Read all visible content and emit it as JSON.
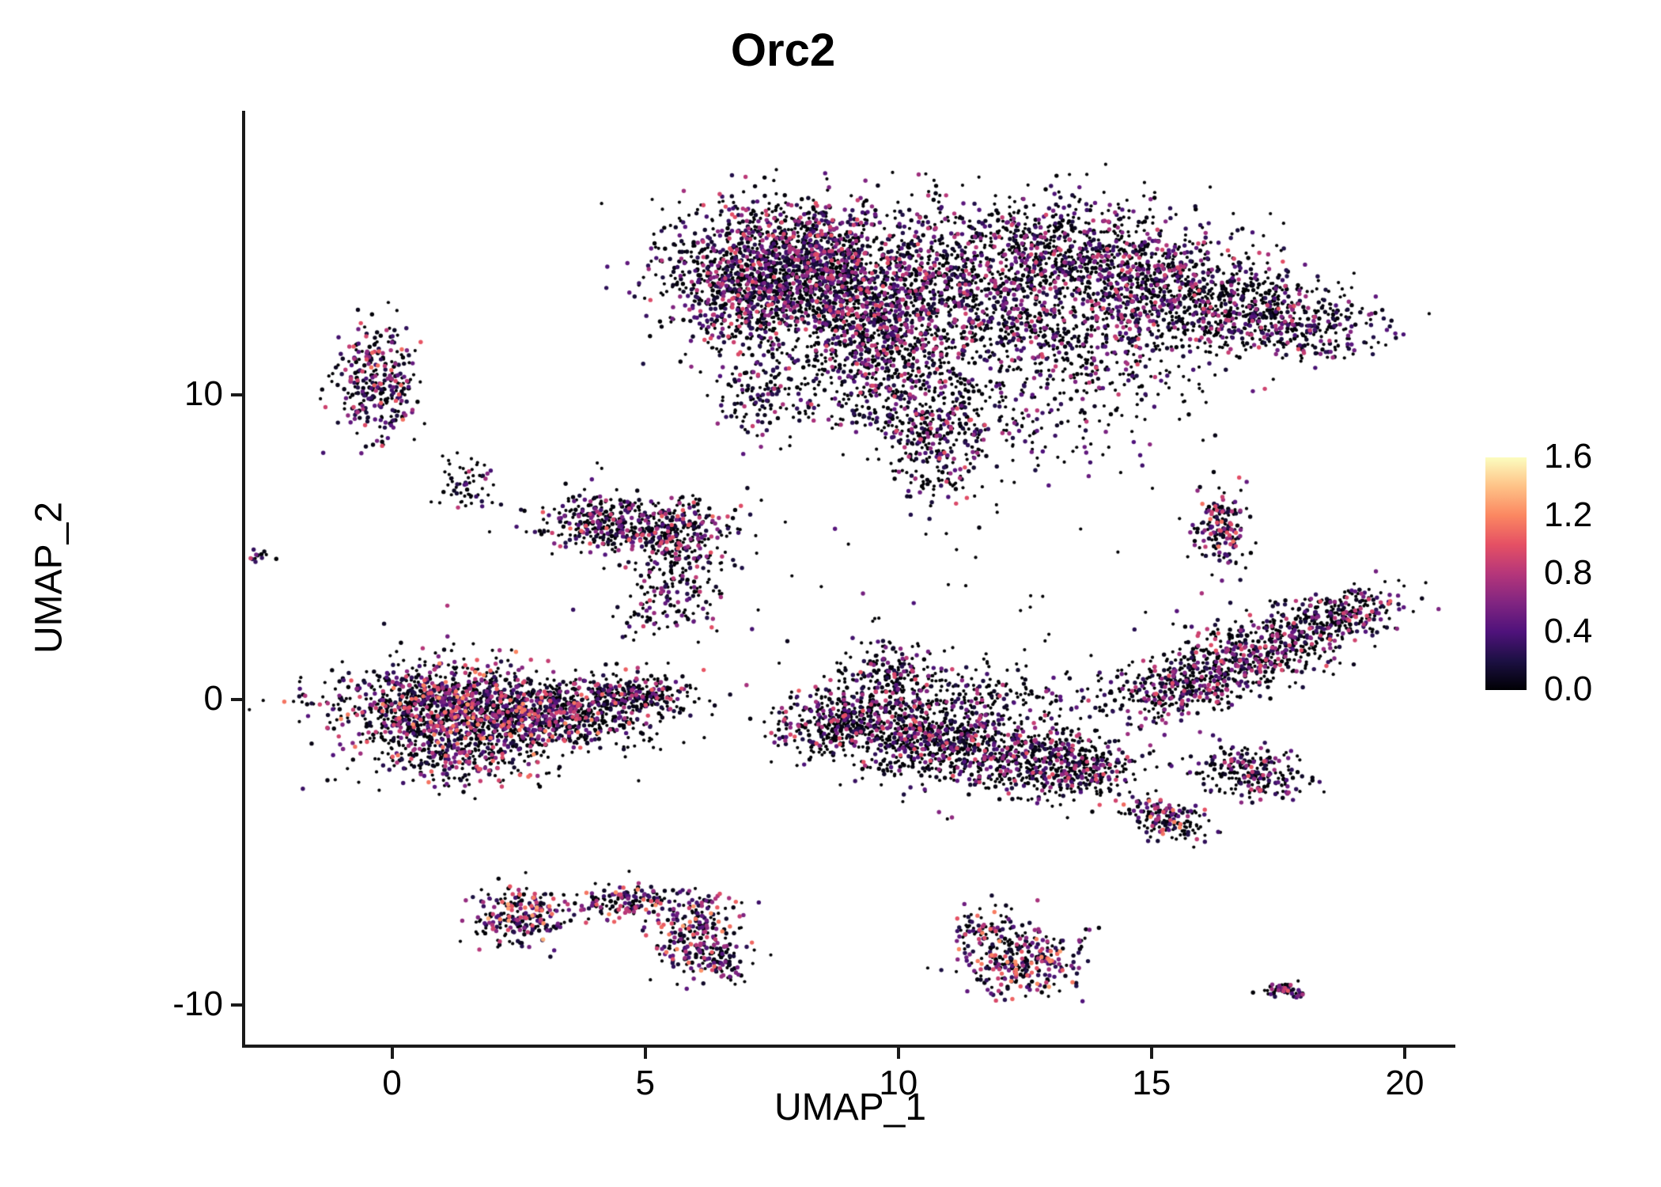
{
  "chart_data": {
    "type": "scatter",
    "title": "Orc2",
    "xlabel": "UMAP_1",
    "ylabel": "UMAP_2",
    "xlim": [
      -2.9,
      21.0
    ],
    "ylim": [
      -11.3,
      19.3
    ],
    "xticks": [
      0,
      5,
      10,
      15,
      20
    ],
    "yticks": [
      -10,
      0,
      10
    ],
    "grid": false,
    "legend_position": "right",
    "colorbar": {
      "vmin": 0.0,
      "vmax": 1.6,
      "tick_labels": [
        "1.6",
        "1.2",
        "0.8",
        "0.4",
        "0.0"
      ],
      "tick_values": [
        1.6,
        1.2,
        0.8,
        0.4,
        0.0
      ],
      "colormap": "magma",
      "stops": [
        [
          0.0,
          "#000004"
        ],
        [
          0.125,
          "#1c1043"
        ],
        [
          0.25,
          "#4f127b"
        ],
        [
          0.375,
          "#812581"
        ],
        [
          0.5,
          "#b5367a"
        ],
        [
          0.625,
          "#e55064"
        ],
        [
          0.75,
          "#fb8761"
        ],
        [
          0.875,
          "#fec287"
        ],
        [
          1.0,
          "#fcfdbf"
        ]
      ]
    },
    "point_radius": {
      "zero": 2.1,
      "expressed": 2.7
    },
    "seed": 12345,
    "cluster_fields": [
      "n",
      "cx",
      "cy",
      "sx",
      "sy",
      "rot_deg",
      "p_zero",
      "expr_scale"
    ],
    "clusters": [
      [
        1400,
        8.0,
        14.6,
        1.25,
        0.95,
        0,
        0.42,
        1.0
      ],
      [
        900,
        9.4,
        12.7,
        1.0,
        1.0,
        0,
        0.45,
        1.0
      ],
      [
        450,
        6.9,
        13.0,
        0.7,
        0.85,
        0,
        0.42,
        1.0
      ],
      [
        450,
        9.9,
        10.4,
        0.85,
        0.95,
        0,
        0.48,
        1.0
      ],
      [
        260,
        10.8,
        8.4,
        0.5,
        1.0,
        0,
        0.5,
        1.0
      ],
      [
        130,
        7.3,
        9.9,
        0.45,
        0.65,
        0,
        0.5,
        0.9
      ],
      [
        260,
        11.2,
        13.6,
        0.8,
        1.3,
        0,
        0.55,
        0.9
      ],
      [
        800,
        13.3,
        14.7,
        1.35,
        0.85,
        -10,
        0.5,
        0.95
      ],
      [
        900,
        15.6,
        13.3,
        1.5,
        0.9,
        -18,
        0.48,
        1.0
      ],
      [
        350,
        17.6,
        12.4,
        0.95,
        0.6,
        -20,
        0.5,
        0.95
      ],
      [
        350,
        13.6,
        11.4,
        1.3,
        0.85,
        0,
        0.55,
        0.95
      ],
      [
        300,
        12.1,
        12.7,
        0.85,
        0.9,
        0,
        0.5,
        0.95
      ],
      [
        170,
        12.6,
        9.2,
        1.3,
        0.9,
        0,
        0.6,
        0.9
      ],
      [
        300,
        -0.3,
        10.4,
        0.4,
        1.0,
        0,
        0.35,
        1.15
      ],
      [
        12,
        -2.6,
        4.65,
        0.12,
        0.14,
        0,
        0.5,
        1.0
      ],
      [
        60,
        1.5,
        7.2,
        0.3,
        0.5,
        0,
        0.65,
        0.9
      ],
      [
        560,
        4.8,
        5.7,
        0.95,
        0.5,
        -8,
        0.45,
        1.1
      ],
      [
        180,
        5.7,
        4.1,
        0.4,
        0.8,
        0,
        0.55,
        1.0
      ],
      [
        45,
        5.1,
        2.8,
        0.3,
        0.6,
        0,
        0.6,
        0.9
      ],
      [
        1150,
        1.0,
        -0.3,
        1.1,
        0.75,
        0,
        0.45,
        1.25
      ],
      [
        700,
        3.1,
        -0.5,
        1.05,
        0.55,
        -8,
        0.48,
        1.2
      ],
      [
        260,
        4.8,
        0.2,
        0.6,
        0.35,
        0,
        0.5,
        1.1
      ],
      [
        260,
        1.4,
        -1.9,
        0.85,
        0.45,
        0,
        0.5,
        1.15
      ],
      [
        230,
        2.5,
        -7.1,
        0.45,
        0.45,
        0,
        0.3,
        1.35
      ],
      [
        150,
        4.6,
        -6.6,
        0.5,
        0.3,
        0,
        0.32,
        1.3
      ],
      [
        200,
        5.9,
        -7.5,
        0.38,
        0.65,
        -15,
        0.32,
        1.3
      ],
      [
        120,
        6.4,
        -8.5,
        0.3,
        0.45,
        0,
        0.35,
        1.25
      ],
      [
        160,
        9.9,
        0.9,
        0.5,
        0.55,
        0,
        0.55,
        1.0
      ],
      [
        470,
        9.0,
        -0.7,
        0.75,
        0.6,
        0,
        0.52,
        1.05
      ],
      [
        560,
        10.6,
        -1.3,
        0.95,
        0.7,
        0,
        0.55,
        1.0
      ],
      [
        460,
        12.3,
        -1.8,
        0.95,
        0.6,
        -12,
        0.55,
        1.0
      ],
      [
        260,
        13.6,
        -2.2,
        0.6,
        0.5,
        0,
        0.55,
        1.0
      ],
      [
        200,
        11.6,
        0.2,
        1.2,
        0.6,
        0,
        0.6,
        0.95
      ],
      [
        360,
        15.6,
        0.4,
        0.85,
        0.55,
        20,
        0.5,
        1.0
      ],
      [
        470,
        17.2,
        1.6,
        0.95,
        0.55,
        25,
        0.5,
        1.0
      ],
      [
        260,
        18.8,
        2.8,
        0.65,
        0.4,
        25,
        0.5,
        1.05
      ],
      [
        230,
        16.9,
        -2.4,
        0.55,
        0.45,
        -10,
        0.5,
        1.05
      ],
      [
        160,
        16.4,
        5.6,
        0.25,
        0.6,
        0,
        0.35,
        1.15
      ],
      [
        170,
        15.3,
        -3.9,
        0.45,
        0.3,
        -25,
        0.45,
        1.2
      ],
      [
        290,
        12.5,
        -8.6,
        0.55,
        0.6,
        -20,
        0.32,
        1.3
      ],
      [
        70,
        11.7,
        -7.5,
        0.3,
        0.3,
        0,
        0.4,
        1.2
      ],
      [
        60,
        17.6,
        -9.5,
        0.28,
        0.13,
        -8,
        0.45,
        1.05
      ],
      [
        60,
        9.5,
        3.5,
        3.5,
        2.0,
        0,
        0.75,
        0.8
      ]
    ]
  }
}
